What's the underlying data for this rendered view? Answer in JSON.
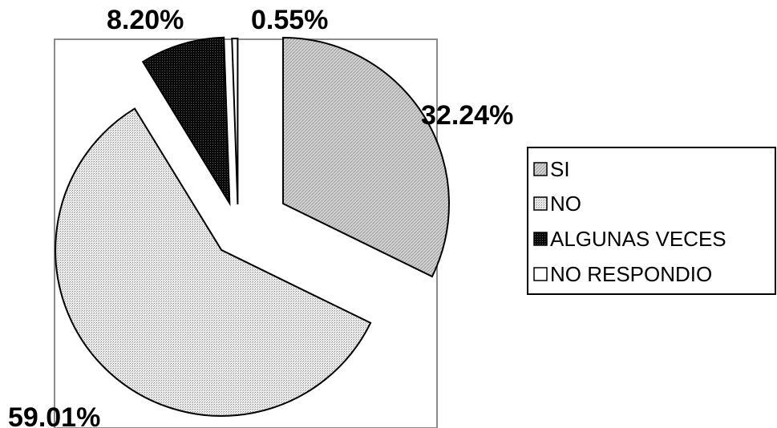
{
  "chart_data": {
    "type": "pie",
    "categories": [
      "SI",
      "NO",
      "ALGUNAS VECES",
      "NO RESPONDIO"
    ],
    "values": [
      32.24,
      59.01,
      8.2,
      0.55
    ],
    "labels": [
      "32.24%",
      "59.01%",
      "8.20%",
      "0.55%"
    ],
    "exploded": true,
    "legend_position": "right",
    "colors": [
      "#d6d6d6",
      "#e8e8e8",
      "#111111",
      "#ffffff"
    ]
  }
}
